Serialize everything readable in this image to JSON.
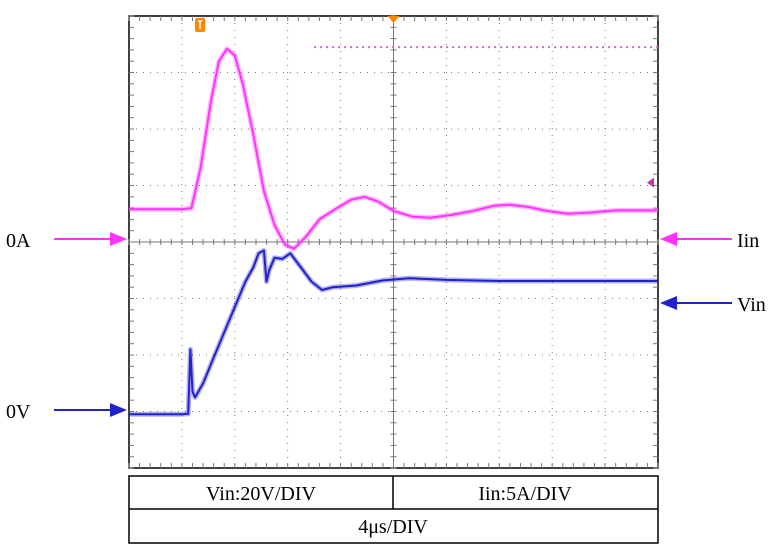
{
  "chart_data": {
    "type": "line",
    "title": "",
    "x_divisions": 10,
    "y_divisions": 8,
    "x_range_div": [
      0,
      10
    ],
    "y_range_div": [
      0,
      8
    ],
    "grid": true,
    "series": [
      {
        "name": "Iin",
        "color": "#ff33ff",
        "ground_label": "0A",
        "points_div": [
          [
            0,
            4.58
          ],
          [
            1.0,
            4.58
          ],
          [
            1.18,
            4.6
          ],
          [
            1.35,
            5.3
          ],
          [
            1.55,
            6.5
          ],
          [
            1.7,
            7.2
          ],
          [
            1.85,
            7.42
          ],
          [
            2.0,
            7.3
          ],
          [
            2.15,
            6.8
          ],
          [
            2.35,
            5.9
          ],
          [
            2.55,
            4.9
          ],
          [
            2.75,
            4.3
          ],
          [
            2.95,
            3.95
          ],
          [
            3.12,
            3.88
          ],
          [
            3.35,
            4.1
          ],
          [
            3.6,
            4.4
          ],
          [
            3.9,
            4.58
          ],
          [
            4.2,
            4.75
          ],
          [
            4.45,
            4.8
          ],
          [
            4.7,
            4.72
          ],
          [
            5.0,
            4.55
          ],
          [
            5.35,
            4.45
          ],
          [
            5.7,
            4.43
          ],
          [
            6.1,
            4.48
          ],
          [
            6.5,
            4.55
          ],
          [
            6.9,
            4.64
          ],
          [
            7.2,
            4.66
          ],
          [
            7.55,
            4.62
          ],
          [
            7.9,
            4.55
          ],
          [
            8.3,
            4.5
          ],
          [
            8.7,
            4.52
          ],
          [
            9.2,
            4.56
          ],
          [
            10,
            4.56
          ]
        ]
      },
      {
        "name": "Vin",
        "color": "#2222cc",
        "ground_label": "0V",
        "points_div": [
          [
            0,
            0.95
          ],
          [
            1.0,
            0.95
          ],
          [
            1.12,
            0.96
          ],
          [
            1.16,
            2.1
          ],
          [
            1.2,
            1.35
          ],
          [
            1.25,
            1.25
          ],
          [
            1.4,
            1.5
          ],
          [
            1.6,
            1.95
          ],
          [
            1.8,
            2.4
          ],
          [
            2.0,
            2.85
          ],
          [
            2.2,
            3.3
          ],
          [
            2.35,
            3.55
          ],
          [
            2.45,
            3.8
          ],
          [
            2.55,
            3.85
          ],
          [
            2.6,
            3.3
          ],
          [
            2.65,
            3.5
          ],
          [
            2.75,
            3.72
          ],
          [
            2.9,
            3.7
          ],
          [
            3.05,
            3.8
          ],
          [
            3.25,
            3.55
          ],
          [
            3.45,
            3.3
          ],
          [
            3.65,
            3.15
          ],
          [
            3.85,
            3.2
          ],
          [
            4.3,
            3.23
          ],
          [
            4.8,
            3.32
          ],
          [
            5.3,
            3.36
          ],
          [
            6.0,
            3.33
          ],
          [
            7.0,
            3.31
          ],
          [
            8.0,
            3.31
          ],
          [
            9.0,
            3.31
          ],
          [
            10,
            3.31
          ]
        ]
      }
    ],
    "table": {
      "row1": [
        "Vin:20V/DIV",
        "Iin:5A/DIV"
      ],
      "row2": "4μs/DIV"
    },
    "labels": {
      "left_top": "0A",
      "left_bottom": "0V",
      "right_top": "Iin",
      "right_bottom": "Vin"
    },
    "trigger_level_div": 7.45,
    "colors": {
      "screen_bg": "#ffffff",
      "grid": "#777777",
      "trigger_marker": "#ff8800",
      "trigger_level": "#cc66cc",
      "arrow_iin": "#ff33ff",
      "arrow_vin": "#2222cc"
    }
  }
}
